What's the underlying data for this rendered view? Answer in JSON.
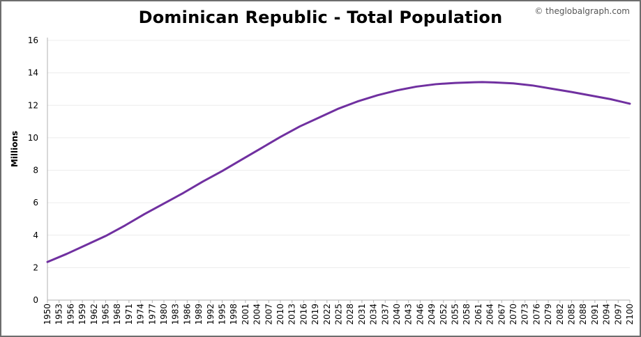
{
  "credit": "© theglobalgraph.com",
  "chart_data": {
    "type": "line",
    "title": "Dominican Republic - Total Population",
    "xlabel": "",
    "ylabel": "Millions",
    "ylim": [
      0,
      16
    ],
    "xlim": [
      1950,
      2100
    ],
    "yticks": [
      0,
      2,
      4,
      6,
      8,
      10,
      12,
      14,
      16
    ],
    "xticks": [
      1950,
      1953,
      1956,
      1959,
      1962,
      1965,
      1968,
      1971,
      1974,
      1977,
      1980,
      1983,
      1986,
      1989,
      1992,
      1995,
      1998,
      2001,
      2004,
      2007,
      2010,
      2013,
      2016,
      2019,
      2022,
      2025,
      2028,
      2031,
      2034,
      2037,
      2040,
      2043,
      2046,
      2049,
      2052,
      2055,
      2058,
      2061,
      2064,
      2067,
      2070,
      2073,
      2076,
      2079,
      2082,
      2085,
      2088,
      2091,
      2094,
      2097,
      2100
    ],
    "grid": true,
    "line_color": "#7030a0",
    "series": [
      {
        "name": "",
        "x": [
          1950,
          1955,
          1960,
          1965,
          1970,
          1975,
          1980,
          1985,
          1990,
          1995,
          2000,
          2005,
          2010,
          2015,
          2020,
          2025,
          2030,
          2035,
          2040,
          2045,
          2050,
          2055,
          2060,
          2062,
          2065,
          2070,
          2075,
          2080,
          2085,
          2090,
          2095,
          2100
        ],
        "values": [
          2.35,
          2.85,
          3.4,
          3.95,
          4.6,
          5.3,
          5.95,
          6.6,
          7.3,
          7.95,
          8.65,
          9.35,
          10.05,
          10.7,
          11.25,
          11.8,
          12.25,
          12.62,
          12.92,
          13.15,
          13.3,
          13.38,
          13.42,
          13.43,
          13.41,
          13.35,
          13.22,
          13.02,
          12.82,
          12.6,
          12.38,
          12.1
        ]
      }
    ]
  }
}
